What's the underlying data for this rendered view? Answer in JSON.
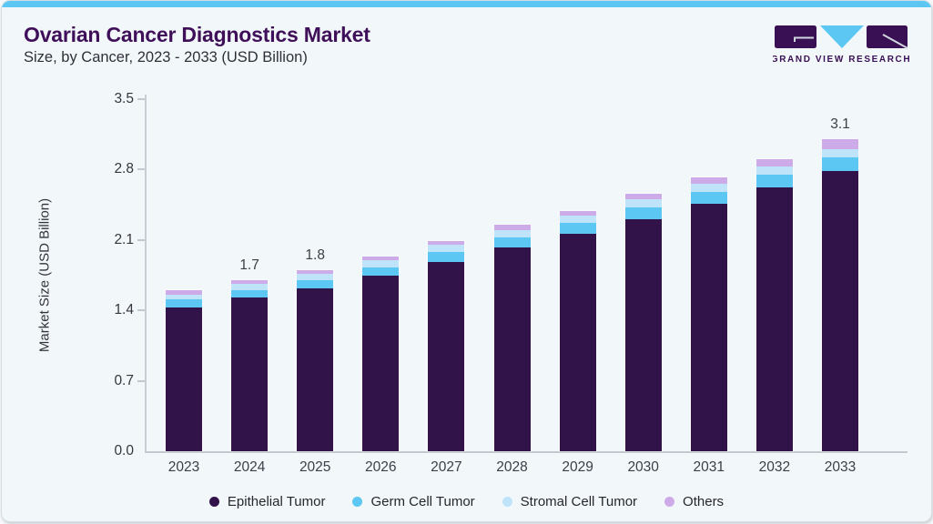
{
  "header": {
    "title": "Ovarian Cancer Diagnostics Market",
    "subtitle": "Size, by Cancer, 2023 - 2033 (USD Billion)"
  },
  "logo": {
    "text": "GRAND VIEW RESEARCH",
    "brand_purple": "#3a1054",
    "brand_cyan": "#5bc7f2"
  },
  "colors": {
    "accent_strip": "#5bc7f2",
    "card_background": "#f2f7fa",
    "axis_line": "#c9ced6",
    "title_text": "#3f1059"
  },
  "chart_data": {
    "type": "bar",
    "stacked": true,
    "title": "Ovarian Cancer Diagnostics Market Size, by Cancer, 2023 - 2033 (USD Billion)",
    "categories": [
      "2023",
      "2024",
      "2025",
      "2026",
      "2027",
      "2028",
      "2029",
      "2030",
      "2031",
      "2032",
      "2033"
    ],
    "series": [
      {
        "name": "Epithelial Tumor",
        "color": "#321349",
        "values": [
          1.43,
          1.53,
          1.62,
          1.75,
          1.88,
          2.03,
          2.16,
          2.31,
          2.46,
          2.62,
          2.79
        ]
      },
      {
        "name": "Germ Cell Tumor",
        "color": "#5bc7f2",
        "values": [
          0.08,
          0.07,
          0.08,
          0.08,
          0.1,
          0.1,
          0.11,
          0.11,
          0.12,
          0.13,
          0.13
        ]
      },
      {
        "name": "Stromal Cell Tumor",
        "color": "#bfe4f9",
        "values": [
          0.05,
          0.06,
          0.06,
          0.07,
          0.07,
          0.07,
          0.07,
          0.09,
          0.08,
          0.08,
          0.08
        ]
      },
      {
        "name": "Others",
        "color": "#cdabe8",
        "values": [
          0.04,
          0.04,
          0.04,
          0.04,
          0.04,
          0.05,
          0.05,
          0.05,
          0.06,
          0.07,
          0.1
        ]
      }
    ],
    "totals": [
      1.6,
      1.7,
      1.8,
      1.94,
      2.09,
      2.25,
      2.39,
      2.56,
      2.72,
      2.9,
      3.1
    ],
    "bar_labels": [
      null,
      "1.7",
      "1.8",
      null,
      null,
      null,
      null,
      null,
      null,
      null,
      "3.1"
    ],
    "xlabel": "",
    "ylabel": "Market Size (USD Billion)",
    "ylim": [
      0,
      3.5
    ],
    "yticks": [
      "0.0",
      "0.7",
      "1.4",
      "2.1",
      "2.8",
      "3.5"
    ],
    "grid": false,
    "legend_position": "bottom"
  }
}
